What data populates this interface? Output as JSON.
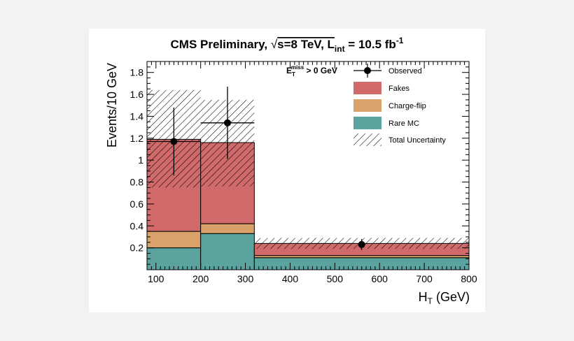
{
  "chart_data": {
    "type": "bar",
    "stacked": true,
    "title": {
      "prefix": "CMS Preliminary, ",
      "sqrt_symbol": "√",
      "energy": "s=8 TeV, L",
      "lumi_sub": "int",
      "lumi_value": " = 10.5 fb",
      "lumi_sup": "-1"
    },
    "xlabel": {
      "main": "H",
      "sub": "T",
      "unit": " (GeV)"
    },
    "ylabel": "Events/10 GeV",
    "xlim": [
      80,
      800
    ],
    "ylim": [
      0,
      1.9
    ],
    "xticks": [
      100,
      200,
      300,
      400,
      500,
      600,
      700,
      800
    ],
    "yticks": [
      0.2,
      0.4,
      0.6,
      0.8,
      1,
      1.2,
      1.4,
      1.6,
      1.8
    ],
    "selection_label": {
      "main": "E",
      "sub": "T",
      "sup": "miss",
      "rest": " > 0 GeV"
    },
    "bins": [
      {
        "low": 80,
        "high": 200,
        "rare_mc": 0.2,
        "charge_flip": 0.15,
        "fakes": 0.84,
        "unc_low": 0.75,
        "unc_high": 1.64
      },
      {
        "low": 200,
        "high": 320,
        "rare_mc": 0.33,
        "charge_flip": 0.09,
        "fakes": 0.74,
        "unc_low": 0.76,
        "unc_high": 1.55
      },
      {
        "low": 320,
        "high": 800,
        "rare_mc": 0.11,
        "charge_flip": 0.02,
        "fakes": 0.11,
        "unc_low": 0.19,
        "unc_high": 0.29
      }
    ],
    "observed": [
      {
        "x": 140,
        "xerr_low": 60,
        "xerr_high": 60,
        "y": 1.17,
        "yerr_low": 0.31,
        "yerr_high": 0.31
      },
      {
        "x": 260,
        "xerr_low": 60,
        "xerr_high": 60,
        "y": 1.34,
        "yerr_low": 0.33,
        "yerr_high": 0.33
      },
      {
        "x": 560,
        "xerr_low": 0,
        "xerr_high": 0,
        "y": 0.23,
        "yerr_low": 0.05,
        "yerr_high": 0.05
      }
    ],
    "legend": {
      "position": "top-right",
      "entries": [
        {
          "label": "Observed",
          "kind": "marker"
        },
        {
          "label": "Fakes",
          "kind": "fill",
          "color": "#d16a6a"
        },
        {
          "label": "Charge-flip",
          "kind": "fill",
          "color": "#d9a26a"
        },
        {
          "label": "Rare MC",
          "kind": "fill",
          "color": "#5ba39e"
        },
        {
          "label": "Total Uncertainty",
          "kind": "hatch"
        }
      ]
    },
    "colors": {
      "fakes": "#d16a6a",
      "charge_flip": "#d9a26a",
      "rare_mc": "#5ba39e",
      "outline": "#000000"
    }
  }
}
